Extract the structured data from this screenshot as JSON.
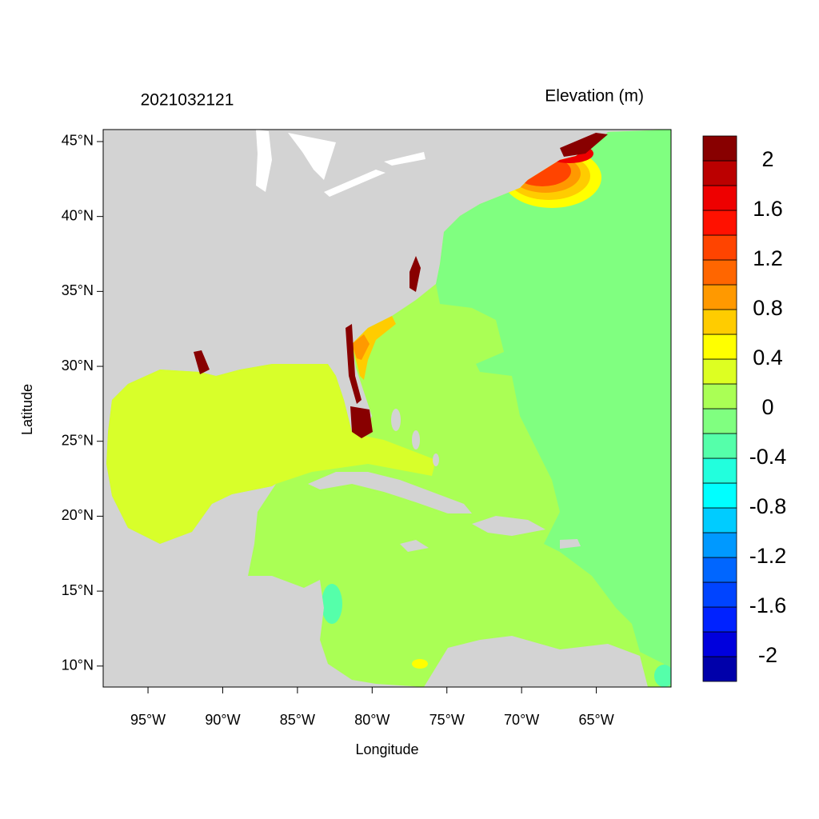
{
  "header": {
    "date": "2021032121",
    "variable": "Elevation (m)"
  },
  "chart_data": {
    "type": "map",
    "xlabel": "Longitude",
    "ylabel": "Latitude",
    "xlim": [
      -98,
      -60
    ],
    "ylim": [
      8.6,
      45.8
    ],
    "xticks": [
      {
        "value": -95,
        "label": "95°W"
      },
      {
        "value": -90,
        "label": "90°W"
      },
      {
        "value": -85,
        "label": "85°W"
      },
      {
        "value": -80,
        "label": "80°W"
      },
      {
        "value": -75,
        "label": "75°W"
      },
      {
        "value": -70,
        "label": "70°W"
      },
      {
        "value": -65,
        "label": "65°W"
      }
    ],
    "yticks": [
      {
        "value": 10,
        "label": "10°N"
      },
      {
        "value": 15,
        "label": "15°N"
      },
      {
        "value": 20,
        "label": "20°N"
      },
      {
        "value": 25,
        "label": "25°N"
      },
      {
        "value": 30,
        "label": "30°N"
      },
      {
        "value": 35,
        "label": "35°N"
      },
      {
        "value": 40,
        "label": "40°N"
      },
      {
        "value": 45,
        "label": "45°N"
      }
    ],
    "colorbar": {
      "levels": [
        -2.2,
        -2,
        -1.8,
        -1.6,
        -1.4,
        -1.2,
        -1,
        -0.8,
        -0.6,
        -0.4,
        -0.2,
        0,
        0.2,
        0.4,
        0.6,
        0.8,
        1,
        1.2,
        1.4,
        1.6,
        1.8,
        2,
        2.2
      ],
      "colors": [
        "#0000aa",
        "#0000dd",
        "#0022ff",
        "#0044ff",
        "#0066ff",
        "#0099ff",
        "#00ccff",
        "#00ffff",
        "#22ffdd",
        "#55ffaa",
        "#80ff80",
        "#aaff55",
        "#ddff22",
        "#ffff00",
        "#ffcc00",
        "#ff9900",
        "#ff6600",
        "#ff4400",
        "#ff1100",
        "#ee0000",
        "#bb0000",
        "#880000"
      ],
      "ticks": [
        -2,
        -1.6,
        -1.2,
        -0.8,
        -0.4,
        0,
        0.4,
        0.8,
        1.2,
        1.6,
        2
      ]
    }
  }
}
